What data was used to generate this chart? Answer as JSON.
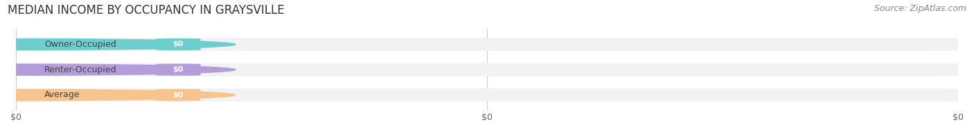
{
  "title": "MEDIAN INCOME BY OCCUPANCY IN GRAYSVILLE",
  "source": "Source: ZipAtlas.com",
  "categories": [
    "Owner-Occupied",
    "Renter-Occupied",
    "Average"
  ],
  "values": [
    0,
    0,
    0
  ],
  "bar_colors": [
    "#6ecece",
    "#b39ddb",
    "#f7c48e"
  ],
  "bar_bg_color": "#f2f2f2",
  "background_color": "#ffffff",
  "title_fontsize": 12,
  "source_fontsize": 9,
  "bar_height": 0.52,
  "figsize": [
    14.06,
    1.96
  ],
  "xlim": [
    0,
    1.0
  ],
  "xtick_positions": [
    0,
    0.5,
    1.0
  ],
  "xtick_labels": [
    "$0",
    "$0",
    "$0"
  ]
}
